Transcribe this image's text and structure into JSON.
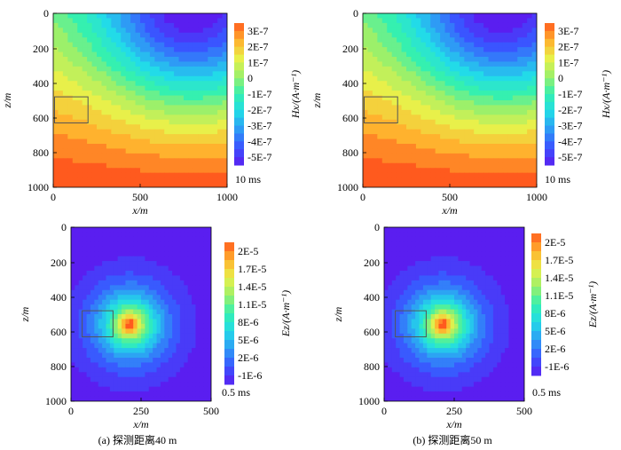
{
  "chart_data": [
    {
      "type": "heatmap",
      "panel": "a-top",
      "field": "Hx",
      "xlabel": "x/m",
      "ylabel": "z/m",
      "xlim": [
        0,
        1000
      ],
      "ylim": [
        0,
        1000
      ],
      "x_ticks": [
        "0",
        "500",
        "1000"
      ],
      "y_ticks": [
        "0",
        "200",
        "400",
        "600",
        "800",
        "1000"
      ],
      "colorbar": {
        "label": "Hx/(A·m⁻¹)",
        "ticks": [
          "3E-7",
          "2E-7",
          "1E-7",
          "0",
          "-1E-7",
          "-2E-7",
          "-3E-7",
          "-4E-7",
          "-5E-7"
        ],
        "time": "10 ms"
      },
      "box": {
        "x": [
          0,
          200
        ],
        "z": [
          480,
          630
        ]
      },
      "field_params": {
        "source_x": 800,
        "source_z": 0,
        "radius": 600,
        "min": -5.2e-07,
        "max": 3.2e-07
      }
    },
    {
      "type": "heatmap",
      "panel": "b-top",
      "field": "Hx",
      "xlabel": "x/m",
      "ylabel": "z/m",
      "xlim": [
        0,
        1000
      ],
      "ylim": [
        0,
        1000
      ],
      "x_ticks": [
        "0",
        "500",
        "1000"
      ],
      "y_ticks": [
        "0",
        "200",
        "400",
        "600",
        "800",
        "1000"
      ],
      "colorbar": {
        "label": "Hx/(A·m⁻¹)",
        "ticks": [
          "3E-7",
          "2E-7",
          "1E-7",
          "0",
          "-1E-7",
          "-2E-7",
          "-3E-7",
          "-4E-7",
          "-5E-7"
        ],
        "time": "10 ms"
      },
      "box": {
        "x": [
          0,
          200
        ],
        "z": [
          480,
          630
        ]
      },
      "field_params": {
        "source_x": 800,
        "source_z": 0,
        "radius": 600,
        "min": -5.2e-07,
        "max": 3.2e-07
      }
    },
    {
      "type": "heatmap",
      "panel": "a-bottom",
      "field": "Ez",
      "xlabel": "x/m",
      "ylabel": "z/m",
      "xlim": [
        0,
        500
      ],
      "ylim": [
        0,
        1000
      ],
      "x_ticks": [
        "0",
        "250",
        "500"
      ],
      "y_ticks": [
        "0",
        "200",
        "400",
        "600",
        "800",
        "1000"
      ],
      "colorbar": {
        "label": "Ez/(A·m⁻¹)",
        "ticks": [
          "2E-5",
          "1.7E-5",
          "1.4E-5",
          "1.1E-5",
          "8E-6",
          "5E-6",
          "2E-6",
          "-1E-6"
        ],
        "time": "0.5 ms"
      },
      "box": {
        "x": [
          40,
          150
        ],
        "z": [
          480,
          630
        ]
      },
      "field_params": {
        "center_x": 210,
        "center_z": 560,
        "min": -1.5e-06,
        "max": 2.3e-05
      }
    },
    {
      "type": "heatmap",
      "panel": "b-bottom",
      "field": "Ez",
      "xlabel": "x/m",
      "ylabel": "z/m",
      "xlim": [
        0,
        500
      ],
      "ylim": [
        0,
        1000
      ],
      "x_ticks": [
        "0",
        "250",
        "500"
      ],
      "y_ticks": [
        "0",
        "200",
        "400",
        "600",
        "800",
        "1000"
      ],
      "colorbar": {
        "label": "Ez/(A·m⁻¹)",
        "ticks": [
          "2E-5",
          "1.7E-5",
          "1.4E-5",
          "1.1E-5",
          "8E-6",
          "5E-6",
          "2E-6",
          "-1E-6"
        ],
        "time": "0.5 ms"
      },
      "box": {
        "x": [
          40,
          150
        ],
        "z": [
          480,
          630
        ]
      },
      "field_params": {
        "center_x": 210,
        "center_z": 560,
        "min": -1.5e-06,
        "max": 2.3e-05
      }
    }
  ],
  "captions": {
    "a": "(a) 探测距离40 m",
    "b": "(b) 探测距离50 m"
  },
  "colors": {
    "jet": [
      "#5a1ef0",
      "#3a55ff",
      "#2e9bf5",
      "#22dbe8",
      "#35f0b0",
      "#9cf06a",
      "#e8f04a",
      "#ffb22e",
      "#ff5a1e"
    ],
    "box": "#555555"
  }
}
